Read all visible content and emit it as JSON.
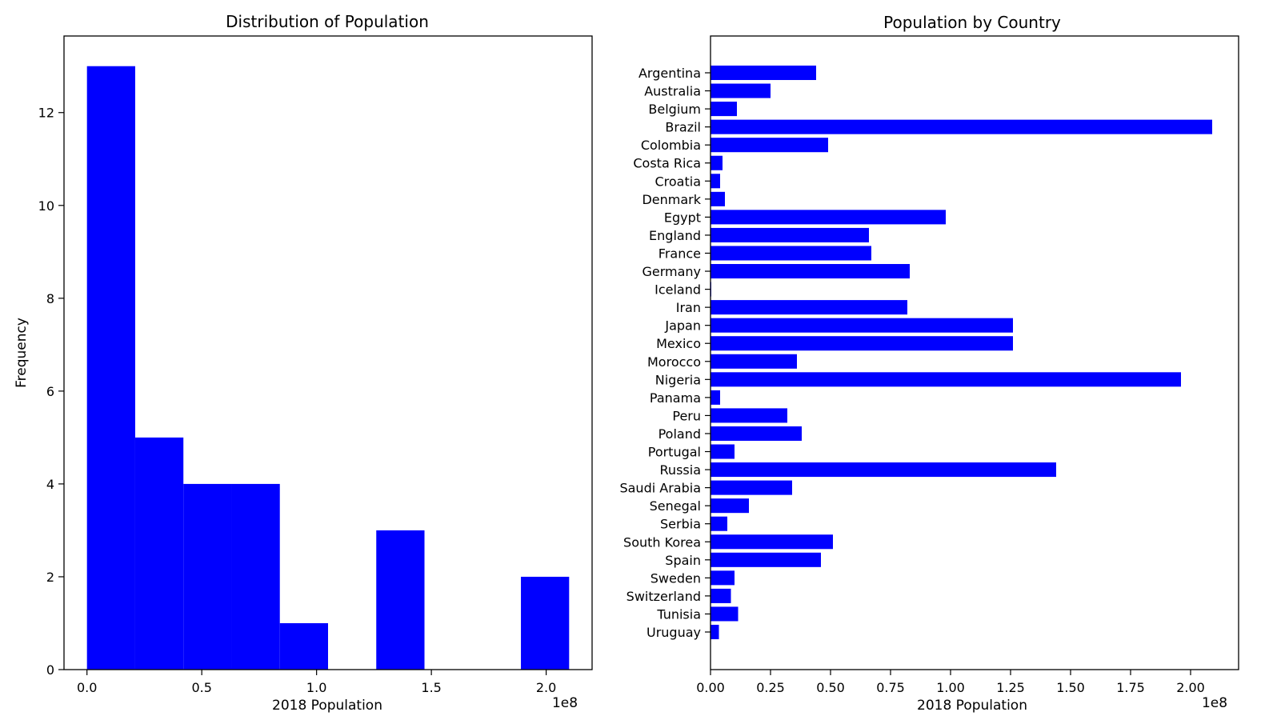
{
  "colors": {
    "bar": "#0000ff",
    "axes": "#000000",
    "background": "#ffffff"
  },
  "chart_data": [
    {
      "type": "bar",
      "subtype": "histogram",
      "title": "Distribution of Population",
      "xlabel": "2018 Population",
      "ylabel": "Frequency",
      "x_offset_text": "1e8",
      "x_scale": 100000000,
      "xlim": [
        -0.1,
        2.2
      ],
      "ylim": [
        0,
        13.65
      ],
      "xticks": [
        {
          "value": 0.0,
          "label": "0.0"
        },
        {
          "value": 0.5,
          "label": "0.5"
        },
        {
          "value": 1.0,
          "label": "1.0"
        },
        {
          "value": 1.5,
          "label": "1.5"
        },
        {
          "value": 2.0,
          "label": "2.0"
        }
      ],
      "yticks": [
        {
          "value": 0,
          "label": "0"
        },
        {
          "value": 2,
          "label": "2"
        },
        {
          "value": 4,
          "label": "4"
        },
        {
          "value": 6,
          "label": "6"
        },
        {
          "value": 8,
          "label": "8"
        },
        {
          "value": 10,
          "label": "10"
        },
        {
          "value": 12,
          "label": "12"
        }
      ],
      "bin_edges": [
        0.0,
        0.21,
        0.42,
        0.63,
        0.84,
        1.05,
        1.26,
        1.47,
        1.68,
        1.89,
        2.1
      ],
      "values": [
        13,
        5,
        4,
        4,
        1,
        0,
        3,
        0,
        0,
        2
      ]
    },
    {
      "type": "bar",
      "orientation": "horizontal",
      "title": "Population by Country",
      "xlabel": "2018 Population",
      "x_offset_text": "1e8",
      "x_scale": 100000000,
      "xlim": [
        0,
        2.2
      ],
      "xticks": [
        {
          "value": 0.0,
          "label": "0.00"
        },
        {
          "value": 0.25,
          "label": "0.25"
        },
        {
          "value": 0.5,
          "label": "0.50"
        },
        {
          "value": 0.75,
          "label": "0.75"
        },
        {
          "value": 1.0,
          "label": "1.00"
        },
        {
          "value": 1.25,
          "label": "1.25"
        },
        {
          "value": 1.5,
          "label": "1.50"
        },
        {
          "value": 1.75,
          "label": "1.75"
        },
        {
          "value": 2.0,
          "label": "2.00"
        }
      ],
      "categories": [
        "Argentina",
        "Australia",
        "Belgium",
        "Brazil",
        "Colombia",
        "Costa Rica",
        "Croatia",
        "Denmark",
        "Egypt",
        "England",
        "France",
        "Germany",
        "Iceland",
        "Iran",
        "Japan",
        "Mexico",
        "Morocco",
        "Nigeria",
        "Panama",
        "Peru",
        "Poland",
        "Portugal",
        "Russia",
        "Saudi Arabia",
        "Senegal",
        "Serbia",
        "South Korea",
        "Spain",
        "Sweden",
        "Switzerland",
        "Tunisia",
        "Uruguay"
      ],
      "values": [
        0.44,
        0.25,
        0.11,
        2.09,
        0.49,
        0.05,
        0.04,
        0.06,
        0.98,
        0.66,
        0.67,
        0.83,
        0.003,
        0.82,
        1.26,
        1.26,
        0.36,
        1.96,
        0.04,
        0.32,
        0.38,
        0.1,
        1.44,
        0.34,
        0.16,
        0.07,
        0.51,
        0.46,
        0.1,
        0.085,
        0.115,
        0.035
      ]
    }
  ]
}
